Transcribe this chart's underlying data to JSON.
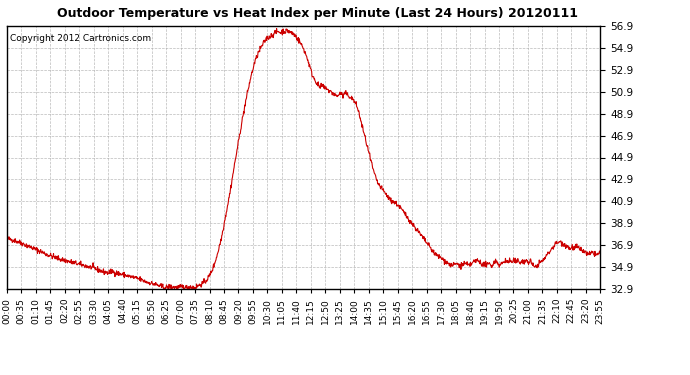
{
  "title": "Outdoor Temperature vs Heat Index per Minute (Last 24 Hours) 20120111",
  "copyright_text": "Copyright 2012 Cartronics.com",
  "line_color": "#cc0000",
  "background_color": "#ffffff",
  "grid_color": "#aaaaaa",
  "ylim": [
    32.9,
    56.9
  ],
  "yticks": [
    32.9,
    34.9,
    36.9,
    38.9,
    40.9,
    42.9,
    44.9,
    46.9,
    48.9,
    50.9,
    52.9,
    54.9,
    56.9
  ],
  "xtick_labels": [
    "00:00",
    "00:35",
    "01:10",
    "01:45",
    "02:20",
    "02:55",
    "03:30",
    "04:05",
    "04:40",
    "05:15",
    "05:50",
    "06:25",
    "07:00",
    "07:35",
    "08:10",
    "08:45",
    "09:20",
    "09:55",
    "10:30",
    "11:05",
    "11:40",
    "12:15",
    "12:50",
    "13:25",
    "14:00",
    "14:35",
    "15:10",
    "15:45",
    "16:20",
    "16:55",
    "17:30",
    "18:05",
    "18:40",
    "19:15",
    "19:50",
    "20:25",
    "21:00",
    "21:35",
    "22:10",
    "22:45",
    "23:20",
    "23:55"
  ],
  "num_points": 1440,
  "curve_profile": [
    [
      0,
      37.5
    ],
    [
      20,
      37.3
    ],
    [
      40,
      37.0
    ],
    [
      70,
      36.5
    ],
    [
      100,
      36.0
    ],
    [
      130,
      35.6
    ],
    [
      160,
      35.3
    ],
    [
      190,
      35.0
    ],
    [
      210,
      34.8
    ],
    [
      230,
      34.5
    ],
    [
      245,
      34.35
    ],
    [
      255,
      34.5
    ],
    [
      265,
      34.35
    ],
    [
      280,
      34.2
    ],
    [
      300,
      34.0
    ],
    [
      320,
      33.8
    ],
    [
      340,
      33.5
    ],
    [
      360,
      33.3
    ],
    [
      375,
      33.1
    ],
    [
      385,
      33.0
    ],
    [
      395,
      33.1
    ],
    [
      405,
      33.05
    ],
    [
      415,
      33.0
    ],
    [
      425,
      33.1
    ],
    [
      435,
      33.0
    ],
    [
      445,
      33.1
    ],
    [
      455,
      33.0
    ],
    [
      465,
      33.2
    ],
    [
      480,
      33.5
    ],
    [
      490,
      34.0
    ],
    [
      500,
      34.8
    ],
    [
      510,
      36.0
    ],
    [
      520,
      37.5
    ],
    [
      530,
      39.5
    ],
    [
      540,
      41.5
    ],
    [
      550,
      43.8
    ],
    [
      560,
      46.0
    ],
    [
      570,
      48.2
    ],
    [
      580,
      50.2
    ],
    [
      590,
      52.0
    ],
    [
      600,
      53.5
    ],
    [
      610,
      54.5
    ],
    [
      620,
      55.2
    ],
    [
      630,
      55.8
    ],
    [
      640,
      56.0
    ],
    [
      650,
      56.3
    ],
    [
      655,
      56.4
    ],
    [
      660,
      56.4
    ],
    [
      665,
      56.3
    ],
    [
      670,
      56.5
    ],
    [
      675,
      56.4
    ],
    [
      680,
      56.5
    ],
    [
      685,
      56.4
    ],
    [
      690,
      56.3
    ],
    [
      695,
      56.2
    ],
    [
      700,
      56.0
    ],
    [
      710,
      55.5
    ],
    [
      720,
      54.8
    ],
    [
      730,
      53.8
    ],
    [
      740,
      52.5
    ],
    [
      750,
      51.8
    ],
    [
      755,
      51.5
    ],
    [
      760,
      51.3
    ],
    [
      765,
      51.5
    ],
    [
      770,
      51.2
    ],
    [
      775,
      51.3
    ],
    [
      780,
      51.0
    ],
    [
      790,
      50.8
    ],
    [
      800,
      50.5
    ],
    [
      810,
      50.8
    ],
    [
      815,
      50.5
    ],
    [
      820,
      50.8
    ],
    [
      830,
      50.5
    ],
    [
      840,
      50.2
    ],
    [
      850,
      49.5
    ],
    [
      860,
      48.0
    ],
    [
      870,
      46.5
    ],
    [
      880,
      45.0
    ],
    [
      890,
      43.5
    ],
    [
      900,
      42.5
    ],
    [
      910,
      42.0
    ],
    [
      920,
      41.5
    ],
    [
      930,
      41.0
    ],
    [
      940,
      40.8
    ],
    [
      950,
      40.5
    ],
    [
      960,
      40.0
    ],
    [
      970,
      39.5
    ],
    [
      980,
      39.0
    ],
    [
      990,
      38.5
    ],
    [
      1000,
      38.0
    ],
    [
      1010,
      37.5
    ],
    [
      1020,
      37.0
    ],
    [
      1030,
      36.5
    ],
    [
      1040,
      36.0
    ],
    [
      1050,
      35.8
    ],
    [
      1060,
      35.5
    ],
    [
      1070,
      35.2
    ],
    [
      1080,
      35.0
    ],
    [
      1090,
      35.2
    ],
    [
      1100,
      35.0
    ],
    [
      1110,
      35.2
    ],
    [
      1120,
      35.0
    ],
    [
      1130,
      35.3
    ],
    [
      1140,
      35.5
    ],
    [
      1150,
      35.3
    ],
    [
      1155,
      35.0
    ],
    [
      1160,
      35.2
    ],
    [
      1165,
      35.0
    ],
    [
      1170,
      35.2
    ],
    [
      1175,
      35.0
    ],
    [
      1180,
      35.2
    ],
    [
      1185,
      35.5
    ],
    [
      1190,
      35.3
    ],
    [
      1195,
      35.0
    ],
    [
      1200,
      35.2
    ],
    [
      1210,
      35.5
    ],
    [
      1215,
      35.3
    ],
    [
      1220,
      35.5
    ],
    [
      1225,
      35.3
    ],
    [
      1230,
      35.5
    ],
    [
      1235,
      35.3
    ],
    [
      1240,
      35.5
    ],
    [
      1245,
      35.3
    ],
    [
      1250,
      35.5
    ],
    [
      1255,
      35.3
    ],
    [
      1260,
      35.5
    ],
    [
      1265,
      35.3
    ],
    [
      1270,
      35.5
    ],
    [
      1275,
      35.0
    ],
    [
      1280,
      34.9
    ],
    [
      1285,
      35.0
    ],
    [
      1290,
      35.2
    ],
    [
      1300,
      35.5
    ],
    [
      1310,
      36.0
    ],
    [
      1320,
      36.5
    ],
    [
      1330,
      37.0
    ],
    [
      1340,
      37.2
    ],
    [
      1350,
      37.0
    ],
    [
      1360,
      36.8
    ],
    [
      1365,
      36.5
    ],
    [
      1370,
      36.8
    ],
    [
      1375,
      36.5
    ],
    [
      1380,
      36.8
    ],
    [
      1390,
      36.5
    ],
    [
      1400,
      36.3
    ],
    [
      1410,
      36.0
    ],
    [
      1420,
      36.2
    ],
    [
      1430,
      36.0
    ],
    [
      1439,
      36.2
    ]
  ]
}
